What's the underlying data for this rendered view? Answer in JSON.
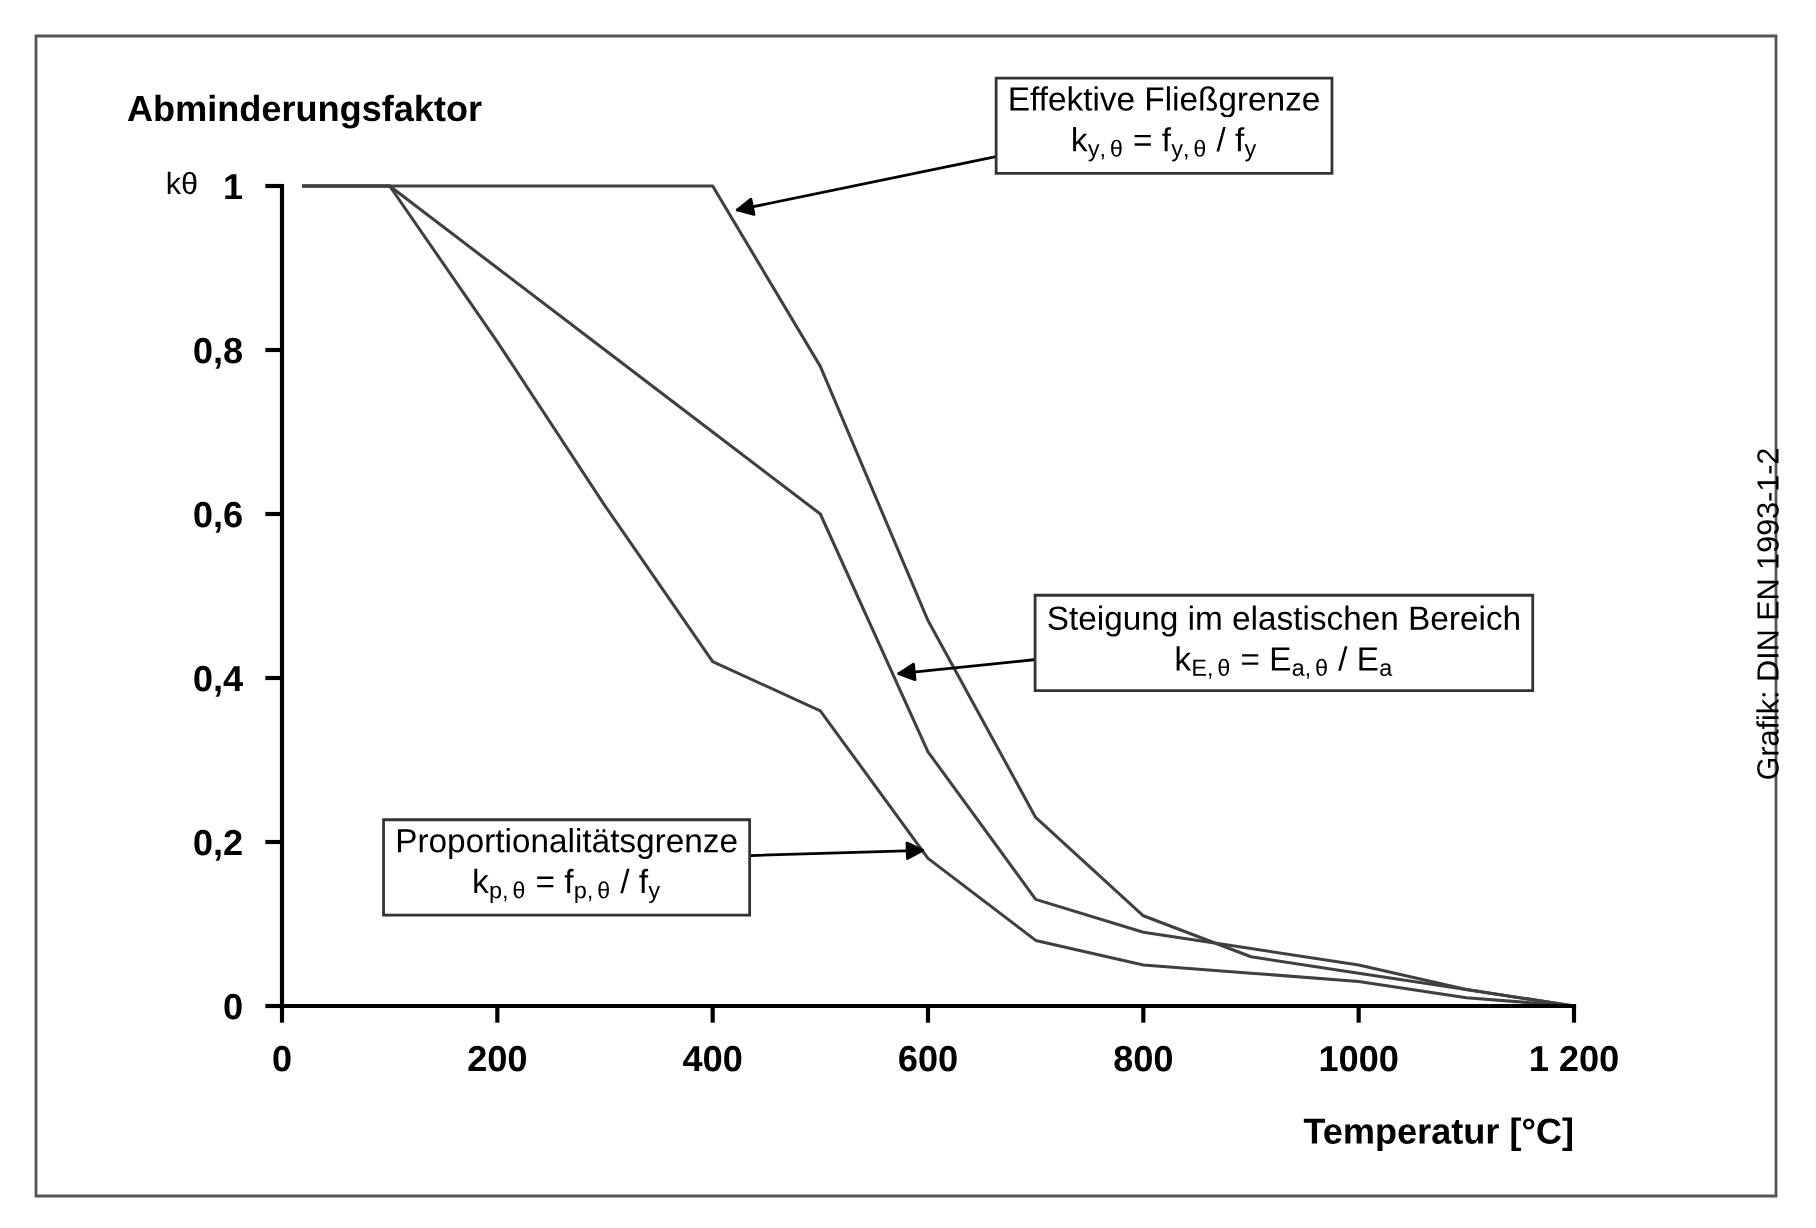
{
  "chart_data": {
    "type": "line",
    "ylabel": "Abminderungsfaktor",
    "xlabel": "Temperatur [°C]",
    "xlim": [
      0,
      1200
    ],
    "ylim": [
      0,
      1
    ],
    "xticks": [
      0,
      200,
      400,
      600,
      800,
      1000,
      {
        "value": 1200,
        "label": "1 200"
      }
    ],
    "yticks": [
      0,
      {
        "value": 0.2,
        "label": "0,2"
      },
      {
        "value": 0.4,
        "label": "0,4"
      },
      {
        "value": 0.6,
        "label": "0,6"
      },
      {
        "value": 0.8,
        "label": "0,8"
      },
      1
    ],
    "grid": false,
    "line_style": "solid",
    "marker": "none",
    "series": [
      {
        "color": "#404040",
        "x": [
          20,
          100,
          200,
          300,
          400,
          500,
          600,
          700,
          800,
          900,
          1000,
          1100,
          1200
        ],
        "values": [
          1,
          1,
          1,
          1,
          1,
          0.78,
          0.47,
          0.23,
          0.11,
          0.06,
          0.04,
          0.02,
          0
        ]
      },
      {
        "color": "#404040",
        "x": [
          20,
          100,
          200,
          300,
          400,
          500,
          600,
          700,
          800,
          900,
          1000,
          1100,
          1200
        ],
        "values": [
          1,
          1,
          0.9,
          0.8,
          0.7,
          0.6,
          0.31,
          0.13,
          0.09,
          0.07,
          0.05,
          0.02,
          0
        ]
      },
      {
        "color": "#404040",
        "x": [
          20,
          100,
          200,
          300,
          400,
          500,
          600,
          700,
          800,
          900,
          1000,
          1100,
          1200
        ],
        "values": [
          1,
          1,
          0.81,
          0.61,
          0.42,
          0.36,
          0.18,
          0.08,
          0.05,
          0.04,
          0.03,
          0.01,
          0
        ]
      }
    ],
    "annotations": [
      "kθ",
      "Grafik: DIN EN 1993-1-2",
      {
        "text": "Effektive Fließgrenze\nk$_{y,θ}$ = f$_{y,θ}$ / f$_{y}$",
        "x": 420,
        "y": 0.97
      },
      {
        "text": "Steigung im elastischen Bereich\nk$_{E,θ}$ = E$_{a,θ}$ / E$_{a}$",
        "x": 570,
        "y": 0.405
      },
      {
        "text": "Proportionalitätsgrenze\nk$_{p,θ}$ = f$_{p,θ}$ / f$_{y}$",
        "x": 598,
        "y": 0.19
      }
    ]
  }
}
